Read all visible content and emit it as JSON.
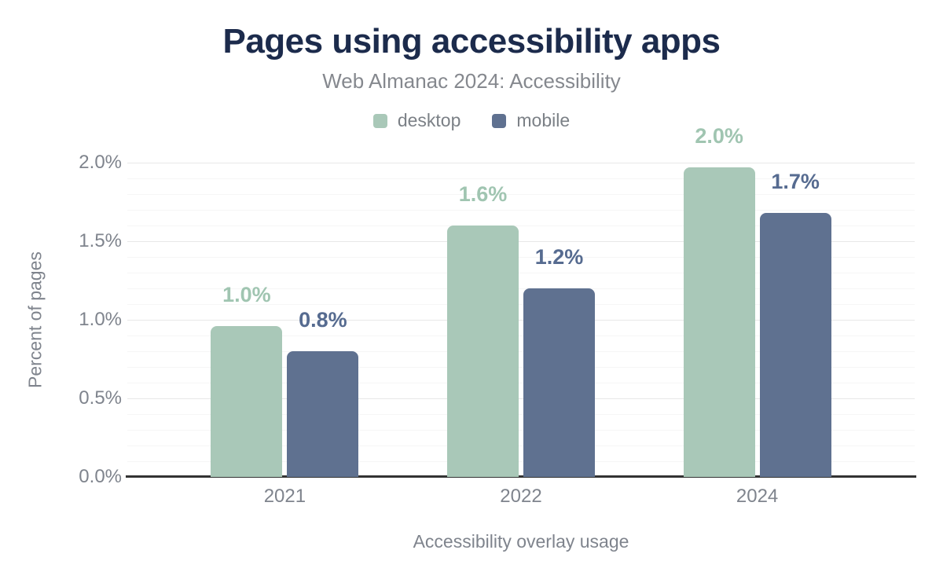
{
  "header": {
    "title": "Pages using accessibility apps",
    "subtitle": "Web Almanac 2024: Accessibility"
  },
  "colors": {
    "title": "#1c2b4c",
    "subtitle_gray": "#85888e",
    "axis_text_gray": "#7f848d",
    "desktop_green": "#a9c8b8",
    "mobile_blue": "#5f7190",
    "desktop_label_green": "#a0c5b1",
    "mobile_label_blue": "#566b90",
    "major_gridline": "#e8e8e8",
    "minor_gridline": "#f6f6f6",
    "baseline": "#333333"
  },
  "chart_data": {
    "type": "bar",
    "title": "Pages using accessibility apps",
    "subtitle": "Web Almanac 2024: Accessibility",
    "categories": [
      "2021",
      "2022",
      "2024"
    ],
    "series": [
      {
        "name": "desktop",
        "color": "#a9c8b8",
        "label_color": "#a0c5b1",
        "values": [
          0.96,
          1.6,
          1.97
        ],
        "labels": [
          "1.0%",
          "1.6%",
          "2.0%"
        ]
      },
      {
        "name": "mobile",
        "color": "#5f7190",
        "label_color": "#566b90",
        "values": [
          0.8,
          1.2,
          1.68
        ],
        "labels": [
          "0.8%",
          "1.2%",
          "1.7%"
        ]
      }
    ],
    "xlabel": "Accessibility overlay usage",
    "ylabel": "Percent of pages",
    "ylim": [
      0,
      2.0
    ],
    "yticks": [
      {
        "value": 0.0,
        "label": "0.0%"
      },
      {
        "value": 0.5,
        "label": "0.5%"
      },
      {
        "value": 1.0,
        "label": "1.0%"
      },
      {
        "value": 1.5,
        "label": "1.5%"
      },
      {
        "value": 2.0,
        "label": "2.0%"
      }
    ],
    "grid": {
      "major_step": 0.5,
      "minor_step": 0.1,
      "grid_on": true
    },
    "legend_position": "top",
    "group_centers_pct": [
      20,
      50,
      80
    ]
  }
}
